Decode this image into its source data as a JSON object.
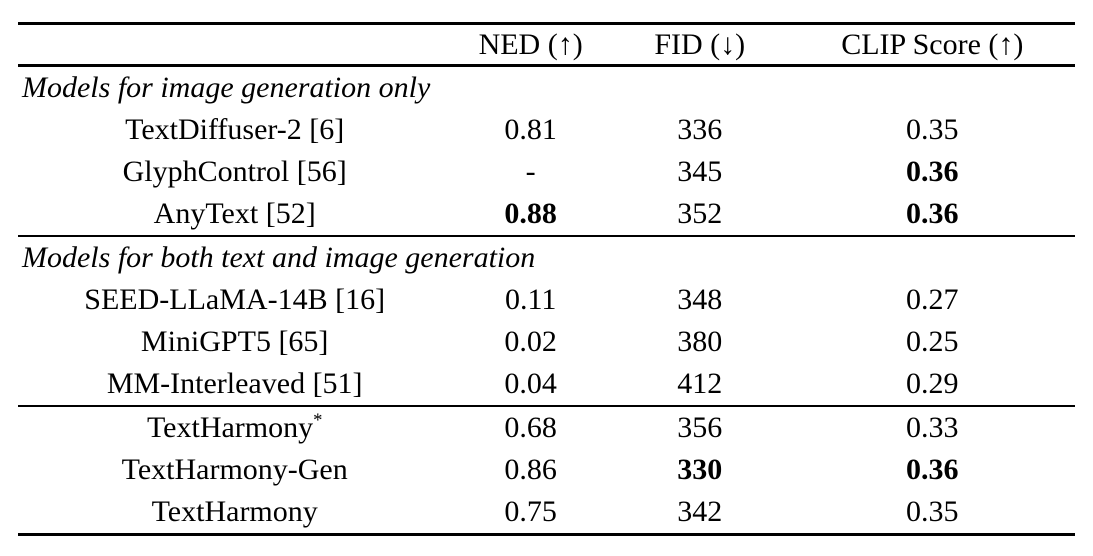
{
  "table": {
    "header": {
      "model": "",
      "ned": "NED (↑)",
      "fid": "FID (↓)",
      "clip": "CLIP Score (↑)"
    },
    "sections": [
      {
        "title": "Models for image generation only",
        "rows": [
          {
            "model": "TextDiffuser-2 [6]",
            "ned": "0.81",
            "fid": "336",
            "clip": "0.35"
          },
          {
            "model": "GlyphControl [56]",
            "ned": "-",
            "fid": "345",
            "clip": "0.36"
          },
          {
            "model": "AnyText [52]",
            "ned": "0.88",
            "fid": "352",
            "clip": "0.36"
          }
        ]
      },
      {
        "title": "Models for both text and image generation",
        "rows": [
          {
            "model": "SEED-LLaMA-14B [16]",
            "ned": "0.11",
            "fid": "348",
            "clip": "0.27"
          },
          {
            "model": "MiniGPT5 [65]",
            "ned": "0.02",
            "fid": "380",
            "clip": "0.25"
          },
          {
            "model": "MM-Interleaved [51]",
            "ned": "0.04",
            "fid": "412",
            "clip": "0.29"
          }
        ]
      },
      {
        "title": "",
        "rows": [
          {
            "model": "TextHarmony",
            "model_sup": "*",
            "ned": "0.68",
            "fid": "356",
            "clip": "0.33"
          },
          {
            "model": "TextHarmony-Gen",
            "model_sup": "",
            "ned": "0.86",
            "fid": "330",
            "clip": "0.36"
          },
          {
            "model": "TextHarmony",
            "model_sup": "",
            "ned": "0.75",
            "fid": "342",
            "clip": "0.35"
          }
        ]
      }
    ]
  }
}
